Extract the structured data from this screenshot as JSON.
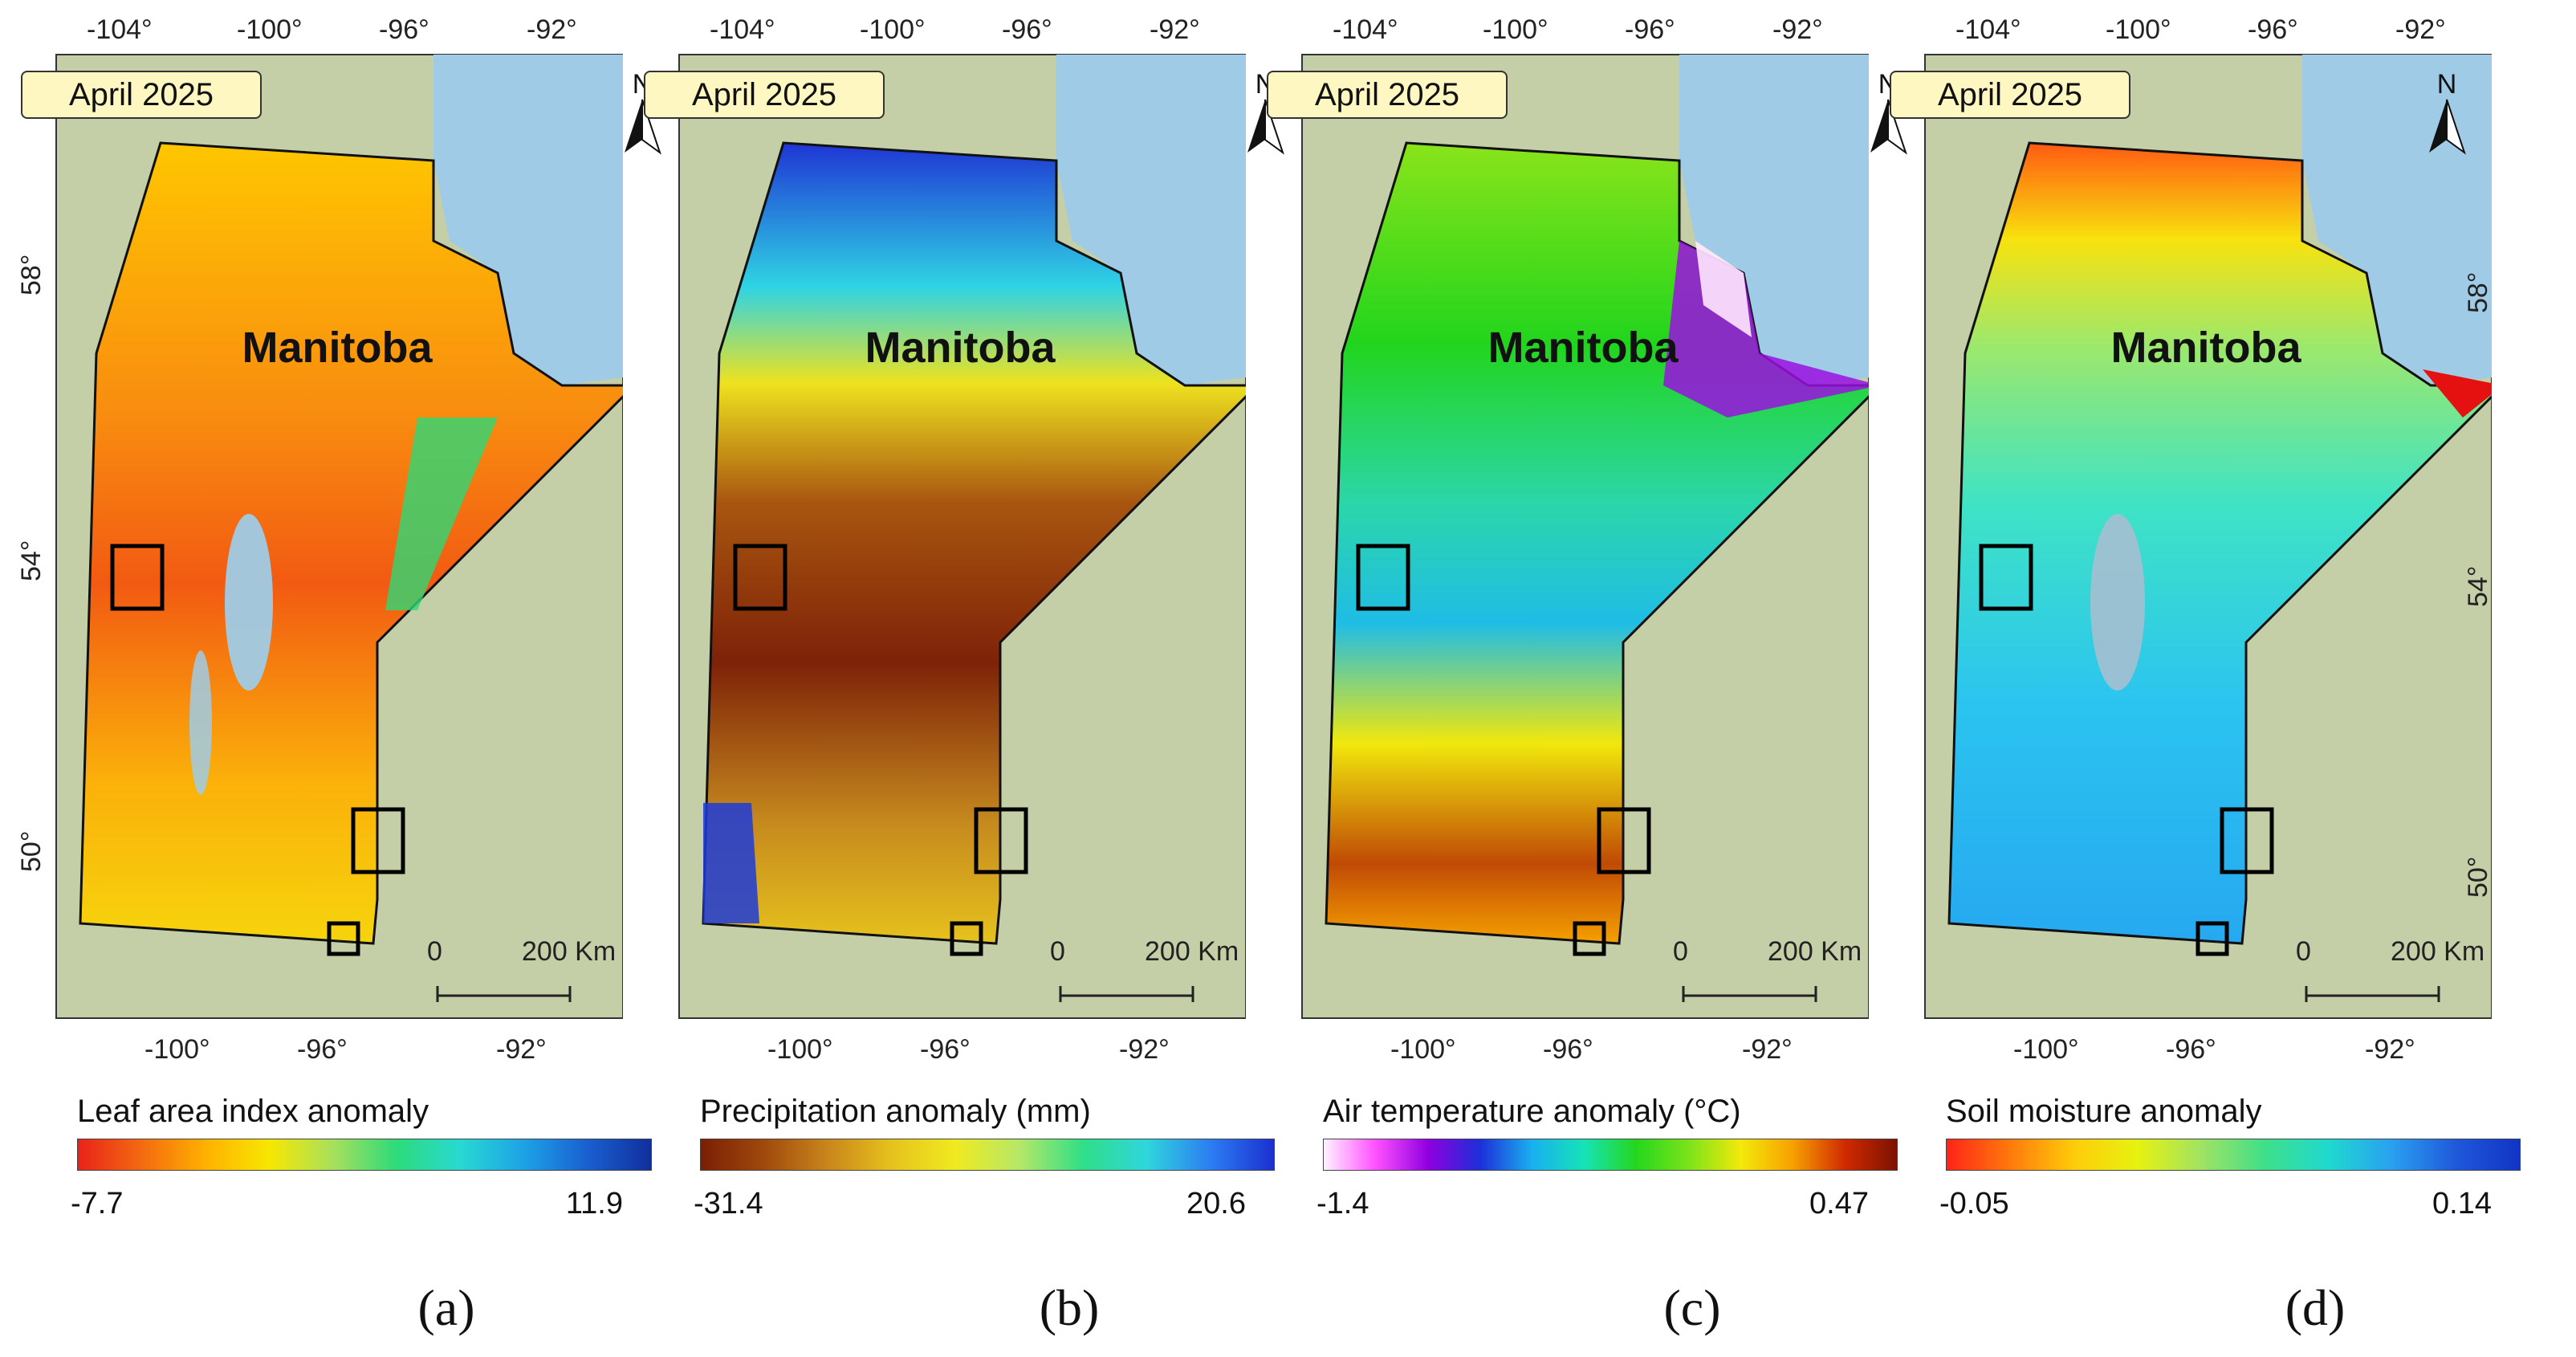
{
  "figure": {
    "panels": [
      {
        "letter": "(a)",
        "date": "April 2025",
        "province": "Manitoba",
        "legend_title": "Leaf area index anomaly",
        "legend_min": "-7.7",
        "legend_max": "11.9",
        "colors": [
          "#e8231a",
          "#f46a10",
          "#ffb000",
          "#f7e700",
          "#a8e05c",
          "#2ddb7a",
          "#28d9d2",
          "#1da2e6",
          "#1a5fd0",
          "#102f9c"
        ]
      },
      {
        "letter": "(b)",
        "date": "April 2025",
        "province": "Manitoba",
        "legend_title": "Precipitation anomaly (mm)",
        "legend_min": "-31.4",
        "legend_max": "20.6",
        "colors": [
          "#7b1e05",
          "#a04a0c",
          "#c9861c",
          "#e6c21d",
          "#f0ea20",
          "#b6e868",
          "#2fdf87",
          "#2fd6dc",
          "#2c7ef2",
          "#1b2fd0"
        ]
      },
      {
        "letter": "(c)",
        "date": "April 2025",
        "province": "Manitoba",
        "legend_title": "Air temperature anomaly (°C)",
        "legend_min": "-1.4",
        "legend_max": "0.47",
        "colors": [
          "#fff2ff",
          "#ff50ff",
          "#8f00e0",
          "#1d2ed8",
          "#19b0ef",
          "#16e3b7",
          "#25d61c",
          "#7ae31a",
          "#f3e90b",
          "#f7a100",
          "#d02a00",
          "#7c1200"
        ]
      },
      {
        "letter": "(d)",
        "date": "April 2025",
        "province": "Manitoba",
        "legend_title": "Soil moisture anomaly",
        "legend_min": "-0.05",
        "legend_max": "0.14",
        "colors": [
          "#ff2418",
          "#ff7a0c",
          "#ffcc0a",
          "#e6f20f",
          "#a0e363",
          "#3fdf8a",
          "#1fd9cf",
          "#2a9ff0",
          "#1f58da",
          "#1134c4"
        ]
      }
    ],
    "map_labels": {
      "lon_top": [
        "-104°",
        "-100°",
        "-96°",
        "-92°"
      ],
      "lon_bottom": [
        "-100°",
        "-96°",
        "-92°"
      ],
      "lat": [
        "58°",
        "54°",
        "50°"
      ],
      "north": "N",
      "scale_zero": "0",
      "scale_end": "200 Km"
    },
    "map_colors": {
      "land": "#c4cfa8",
      "water": "#9fcbe6",
      "outline": "#111111",
      "study_boxes": "#000000"
    }
  }
}
